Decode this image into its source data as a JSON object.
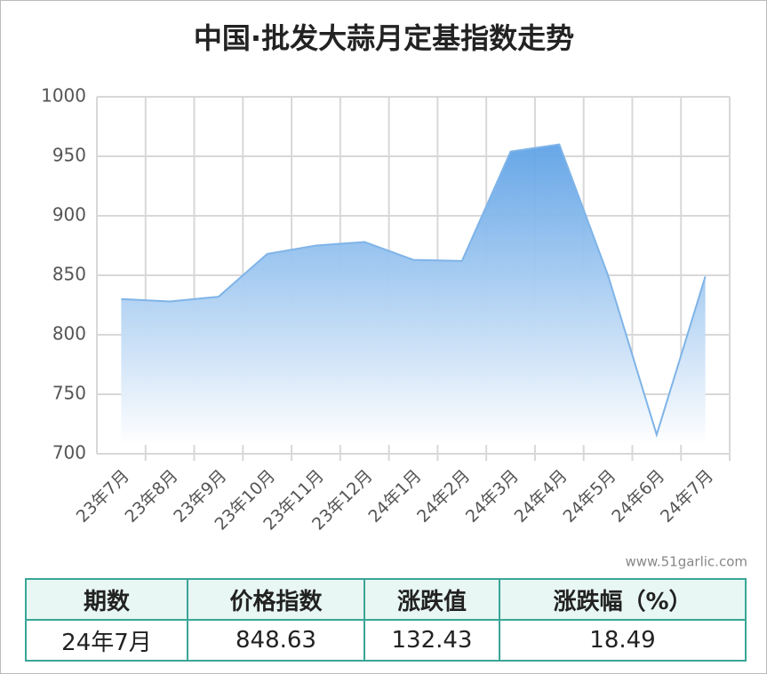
{
  "chart_data": {
    "type": "area",
    "title": "中国·批发大蒜月定基指数走势",
    "source": "www.51garlic.com",
    "categories": [
      "23年7月",
      "23年8月",
      "23年9月",
      "23年10月",
      "23年11月",
      "23年12月",
      "24年1月",
      "24年2月",
      "24年3月",
      "24年4月",
      "24年5月",
      "24年6月",
      "24年7月"
    ],
    "values": [
      830,
      828,
      832,
      868,
      875,
      878,
      863,
      862,
      954,
      960,
      850,
      716,
      849
    ],
    "color": "#7fb4e8",
    "ylim": [
      700,
      1000
    ],
    "yticks": [
      700,
      750,
      800,
      850,
      900,
      950,
      1000
    ],
    "grid": true
  },
  "table": {
    "headers": [
      "期数",
      "价格指数",
      "涨跌值",
      "涨跌幅（%）"
    ],
    "rows": [
      [
        "24年7月",
        "848.63",
        "132.43",
        "18.49"
      ]
    ]
  }
}
